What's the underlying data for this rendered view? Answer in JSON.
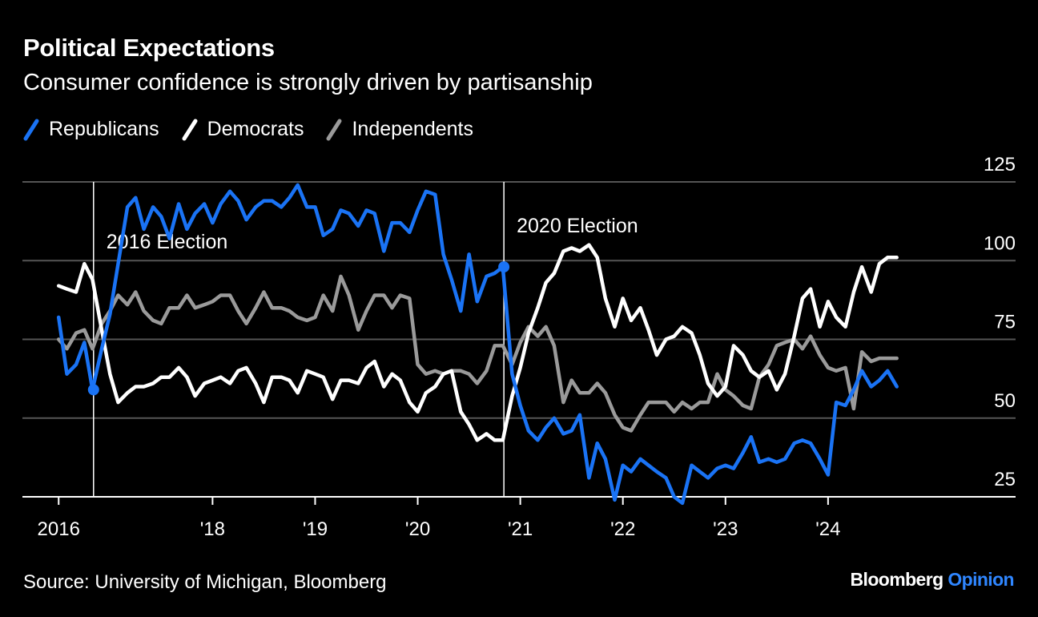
{
  "header": {
    "title": "Political Expectations",
    "subtitle": "Consumer confidence is strongly driven by partisanship"
  },
  "footer": {
    "source": "Source: University of Michigan, Bloomberg",
    "brand_primary": "Bloomberg",
    "brand_accent": "Opinion"
  },
  "colors": {
    "background": "#000000",
    "republicans": "#1a73f5",
    "democrats": "#ffffff",
    "independents": "#9a9a9a",
    "grid": "#555555",
    "brand_accent": "#2f86ff"
  },
  "chart_data": {
    "type": "line",
    "title": "Political Expectations",
    "subtitle": "Consumer confidence is strongly driven by partisanship",
    "x_range": [
      2015.92,
      2025.0
    ],
    "ylim": [
      25,
      125
    ],
    "y_ticks": [
      25,
      50,
      75,
      100,
      125
    ],
    "x_ticks": [
      {
        "value": 2016.0,
        "label": "2016"
      },
      {
        "value": 2017.5,
        "label": "'18"
      },
      {
        "value": 2018.5,
        "label": "'19"
      },
      {
        "value": 2019.5,
        "label": "'20"
      },
      {
        "value": 2020.5,
        "label": "'21"
      },
      {
        "value": 2021.5,
        "label": "'22"
      },
      {
        "value": 2022.5,
        "label": "'23"
      },
      {
        "value": 2023.5,
        "label": "'24"
      }
    ],
    "grid": true,
    "legend_position": "top-left",
    "annotations": [
      {
        "label": "2016 Election",
        "x": 2016.34
      },
      {
        "label": "2020 Election",
        "x": 2020.34
      }
    ],
    "series": [
      {
        "name": "Republicans",
        "x": [
          2016.0,
          2016.08,
          2016.17,
          2016.25,
          2016.33,
          2016.42,
          2016.5,
          2016.58,
          2016.67,
          2016.75,
          2016.83,
          2016.92,
          2017.0,
          2017.08,
          2017.17,
          2017.25,
          2017.33,
          2017.42,
          2017.5,
          2017.58,
          2017.67,
          2017.75,
          2017.83,
          2017.92,
          2018.0,
          2018.08,
          2018.17,
          2018.25,
          2018.33,
          2018.42,
          2018.5,
          2018.58,
          2018.67,
          2018.75,
          2018.83,
          2018.92,
          2019.0,
          2019.08,
          2019.17,
          2019.25,
          2019.33,
          2019.42,
          2019.5,
          2019.58,
          2019.67,
          2019.75,
          2019.83,
          2019.92,
          2020.0,
          2020.08,
          2020.17,
          2020.25,
          2020.33,
          2020.42,
          2020.5,
          2020.58,
          2020.67,
          2020.75,
          2020.83,
          2020.92,
          2021.0,
          2021.08,
          2021.17,
          2021.25,
          2021.33,
          2021.42,
          2021.5,
          2021.58,
          2021.67,
          2021.75,
          2021.83,
          2021.92,
          2022.0,
          2022.08,
          2022.17,
          2022.25,
          2022.33,
          2022.42,
          2022.5,
          2022.58,
          2022.67,
          2022.75,
          2022.83,
          2022.92,
          2023.0,
          2023.08,
          2023.17,
          2023.25,
          2023.33,
          2023.42,
          2023.5,
          2023.58,
          2023.67,
          2023.75,
          2023.83,
          2023.92,
          2024.0,
          2024.08,
          2024.17
        ],
        "values": [
          82,
          64,
          67,
          74,
          59,
          72,
          83,
          99,
          117,
          120,
          110,
          117,
          114,
          107,
          118,
          110,
          115,
          118,
          112,
          118,
          122,
          119,
          113,
          117,
          119,
          119,
          117,
          120,
          124,
          117,
          117,
          108,
          110,
          116,
          115,
          111,
          116,
          115,
          103,
          112,
          112,
          109,
          116,
          122,
          121,
          102,
          94,
          84,
          102,
          87,
          95,
          96,
          98,
          64,
          54,
          46,
          43,
          47,
          50,
          45,
          46,
          51,
          31,
          42,
          37,
          24,
          35,
          33,
          37,
          35,
          33,
          31,
          25,
          23,
          35,
          33,
          31,
          34,
          35,
          34,
          39,
          44,
          36,
          37,
          36,
          37,
          42,
          43,
          42,
          37,
          32,
          55,
          54,
          59,
          65,
          60,
          62,
          65,
          60
        ]
      },
      {
        "name": "Democrats",
        "x": [
          2016.0,
          2016.08,
          2016.17,
          2016.25,
          2016.33,
          2016.42,
          2016.5,
          2016.58,
          2016.67,
          2016.75,
          2016.83,
          2016.92,
          2017.0,
          2017.08,
          2017.17,
          2017.25,
          2017.33,
          2017.42,
          2017.5,
          2017.58,
          2017.67,
          2017.75,
          2017.83,
          2017.92,
          2018.0,
          2018.08,
          2018.17,
          2018.25,
          2018.33,
          2018.42,
          2018.5,
          2018.58,
          2018.67,
          2018.75,
          2018.83,
          2018.92,
          2019.0,
          2019.08,
          2019.17,
          2019.25,
          2019.33,
          2019.42,
          2019.5,
          2019.58,
          2019.67,
          2019.75,
          2019.83,
          2019.92,
          2020.0,
          2020.08,
          2020.17,
          2020.25,
          2020.33,
          2020.42,
          2020.5,
          2020.58,
          2020.67,
          2020.75,
          2020.83,
          2020.92,
          2021.0,
          2021.08,
          2021.17,
          2021.25,
          2021.33,
          2021.42,
          2021.5,
          2021.58,
          2021.67,
          2021.75,
          2021.83,
          2021.92,
          2022.0,
          2022.08,
          2022.17,
          2022.25,
          2022.33,
          2022.42,
          2022.5,
          2022.58,
          2022.67,
          2022.75,
          2022.83,
          2022.92,
          2023.0,
          2023.08,
          2023.17,
          2023.25,
          2023.33,
          2023.42,
          2023.5,
          2023.58,
          2023.67,
          2023.75,
          2023.83,
          2023.92,
          2024.0,
          2024.08,
          2024.17
        ],
        "values": [
          92,
          91,
          90,
          99,
          94,
          78,
          64,
          55,
          58,
          60,
          60,
          61,
          63,
          63,
          66,
          63,
          57,
          61,
          62,
          63,
          61,
          65,
          66,
          61,
          55,
          63,
          63,
          62,
          58,
          65,
          64,
          63,
          56,
          62,
          62,
          61,
          66,
          68,
          60,
          64,
          62,
          55,
          52,
          58,
          60,
          64,
          65,
          52,
          48,
          43,
          45,
          43,
          43,
          57,
          66,
          77,
          85,
          93,
          96,
          103,
          104,
          103,
          105,
          101,
          88,
          79,
          88,
          81,
          85,
          78,
          70,
          75,
          76,
          79,
          77,
          70,
          61,
          57,
          60,
          73,
          70,
          65,
          63,
          65,
          59,
          64,
          76,
          88,
          91,
          79,
          87,
          82,
          79,
          90,
          98,
          90,
          99,
          101,
          101
        ]
      },
      {
        "name": "Independents",
        "x": [
          2016.0,
          2016.08,
          2016.17,
          2016.25,
          2016.33,
          2016.42,
          2016.5,
          2016.58,
          2016.67,
          2016.75,
          2016.83,
          2016.92,
          2017.0,
          2017.08,
          2017.17,
          2017.25,
          2017.33,
          2017.42,
          2017.5,
          2017.58,
          2017.67,
          2017.75,
          2017.83,
          2017.92,
          2018.0,
          2018.08,
          2018.17,
          2018.25,
          2018.33,
          2018.42,
          2018.5,
          2018.58,
          2018.67,
          2018.75,
          2018.83,
          2018.92,
          2019.0,
          2019.08,
          2019.17,
          2019.25,
          2019.33,
          2019.42,
          2019.5,
          2019.58,
          2019.67,
          2019.75,
          2019.83,
          2019.92,
          2020.0,
          2020.08,
          2020.17,
          2020.25,
          2020.33,
          2020.42,
          2020.5,
          2020.58,
          2020.67,
          2020.75,
          2020.83,
          2020.92,
          2021.0,
          2021.08,
          2021.17,
          2021.25,
          2021.33,
          2021.42,
          2021.5,
          2021.58,
          2021.67,
          2021.75,
          2021.83,
          2021.92,
          2022.0,
          2022.08,
          2022.17,
          2022.25,
          2022.33,
          2022.42,
          2022.5,
          2022.58,
          2022.67,
          2022.75,
          2022.83,
          2022.92,
          2023.0,
          2023.08,
          2023.17,
          2023.25,
          2023.33,
          2023.42,
          2023.5,
          2023.58,
          2023.67,
          2023.75,
          2023.83,
          2023.92,
          2024.0,
          2024.08,
          2024.17
        ],
        "values": [
          75,
          72,
          77,
          78,
          72,
          80,
          84,
          89,
          86,
          90,
          84,
          81,
          80,
          85,
          85,
          89,
          85,
          86,
          87,
          89,
          89,
          84,
          80,
          85,
          90,
          85,
          85,
          84,
          82,
          81,
          82,
          89,
          84,
          95,
          89,
          78,
          84,
          89,
          89,
          85,
          89,
          88,
          67,
          64,
          65,
          64,
          65,
          65,
          64,
          61,
          65,
          73,
          73,
          67,
          74,
          79,
          76,
          79,
          73,
          55,
          62,
          58,
          58,
          61,
          58,
          51,
          47,
          46,
          51,
          55,
          55,
          55,
          52,
          55,
          53,
          55,
          55,
          64,
          59,
          57,
          54,
          53,
          63,
          67,
          73,
          74,
          75,
          72,
          76,
          70,
          66,
          65,
          66,
          53,
          71,
          68,
          69,
          69,
          69
        ]
      }
    ]
  }
}
